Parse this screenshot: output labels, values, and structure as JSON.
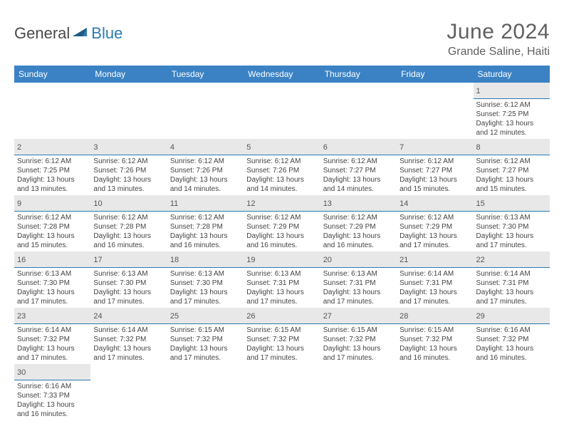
{
  "logo": {
    "part1": "General",
    "part2": "Blue"
  },
  "title": "June 2024",
  "location": "Grande Saline, Haiti",
  "header_bg": "#3b82c4",
  "header_fg": "#ffffff",
  "daynum_bg": "#e8e8e8",
  "divider_color": "#2a7ab0",
  "text_color": "#444444",
  "columns": [
    "Sunday",
    "Monday",
    "Tuesday",
    "Wednesday",
    "Thursday",
    "Friday",
    "Saturday"
  ],
  "weeks": [
    [
      null,
      null,
      null,
      null,
      null,
      null,
      {
        "n": "1",
        "sr": "Sunrise: 6:12 AM",
        "ss": "Sunset: 7:25 PM",
        "d1": "Daylight: 13 hours",
        "d2": "and 12 minutes."
      }
    ],
    [
      {
        "n": "2",
        "sr": "Sunrise: 6:12 AM",
        "ss": "Sunset: 7:25 PM",
        "d1": "Daylight: 13 hours",
        "d2": "and 13 minutes."
      },
      {
        "n": "3",
        "sr": "Sunrise: 6:12 AM",
        "ss": "Sunset: 7:26 PM",
        "d1": "Daylight: 13 hours",
        "d2": "and 13 minutes."
      },
      {
        "n": "4",
        "sr": "Sunrise: 6:12 AM",
        "ss": "Sunset: 7:26 PM",
        "d1": "Daylight: 13 hours",
        "d2": "and 14 minutes."
      },
      {
        "n": "5",
        "sr": "Sunrise: 6:12 AM",
        "ss": "Sunset: 7:26 PM",
        "d1": "Daylight: 13 hours",
        "d2": "and 14 minutes."
      },
      {
        "n": "6",
        "sr": "Sunrise: 6:12 AM",
        "ss": "Sunset: 7:27 PM",
        "d1": "Daylight: 13 hours",
        "d2": "and 14 minutes."
      },
      {
        "n": "7",
        "sr": "Sunrise: 6:12 AM",
        "ss": "Sunset: 7:27 PM",
        "d1": "Daylight: 13 hours",
        "d2": "and 15 minutes."
      },
      {
        "n": "8",
        "sr": "Sunrise: 6:12 AM",
        "ss": "Sunset: 7:27 PM",
        "d1": "Daylight: 13 hours",
        "d2": "and 15 minutes."
      }
    ],
    [
      {
        "n": "9",
        "sr": "Sunrise: 6:12 AM",
        "ss": "Sunset: 7:28 PM",
        "d1": "Daylight: 13 hours",
        "d2": "and 15 minutes."
      },
      {
        "n": "10",
        "sr": "Sunrise: 6:12 AM",
        "ss": "Sunset: 7:28 PM",
        "d1": "Daylight: 13 hours",
        "d2": "and 16 minutes."
      },
      {
        "n": "11",
        "sr": "Sunrise: 6:12 AM",
        "ss": "Sunset: 7:28 PM",
        "d1": "Daylight: 13 hours",
        "d2": "and 16 minutes."
      },
      {
        "n": "12",
        "sr": "Sunrise: 6:12 AM",
        "ss": "Sunset: 7:29 PM",
        "d1": "Daylight: 13 hours",
        "d2": "and 16 minutes."
      },
      {
        "n": "13",
        "sr": "Sunrise: 6:12 AM",
        "ss": "Sunset: 7:29 PM",
        "d1": "Daylight: 13 hours",
        "d2": "and 16 minutes."
      },
      {
        "n": "14",
        "sr": "Sunrise: 6:12 AM",
        "ss": "Sunset: 7:29 PM",
        "d1": "Daylight: 13 hours",
        "d2": "and 17 minutes."
      },
      {
        "n": "15",
        "sr": "Sunrise: 6:13 AM",
        "ss": "Sunset: 7:30 PM",
        "d1": "Daylight: 13 hours",
        "d2": "and 17 minutes."
      }
    ],
    [
      {
        "n": "16",
        "sr": "Sunrise: 6:13 AM",
        "ss": "Sunset: 7:30 PM",
        "d1": "Daylight: 13 hours",
        "d2": "and 17 minutes."
      },
      {
        "n": "17",
        "sr": "Sunrise: 6:13 AM",
        "ss": "Sunset: 7:30 PM",
        "d1": "Daylight: 13 hours",
        "d2": "and 17 minutes."
      },
      {
        "n": "18",
        "sr": "Sunrise: 6:13 AM",
        "ss": "Sunset: 7:30 PM",
        "d1": "Daylight: 13 hours",
        "d2": "and 17 minutes."
      },
      {
        "n": "19",
        "sr": "Sunrise: 6:13 AM",
        "ss": "Sunset: 7:31 PM",
        "d1": "Daylight: 13 hours",
        "d2": "and 17 minutes."
      },
      {
        "n": "20",
        "sr": "Sunrise: 6:13 AM",
        "ss": "Sunset: 7:31 PM",
        "d1": "Daylight: 13 hours",
        "d2": "and 17 minutes."
      },
      {
        "n": "21",
        "sr": "Sunrise: 6:14 AM",
        "ss": "Sunset: 7:31 PM",
        "d1": "Daylight: 13 hours",
        "d2": "and 17 minutes."
      },
      {
        "n": "22",
        "sr": "Sunrise: 6:14 AM",
        "ss": "Sunset: 7:31 PM",
        "d1": "Daylight: 13 hours",
        "d2": "and 17 minutes."
      }
    ],
    [
      {
        "n": "23",
        "sr": "Sunrise: 6:14 AM",
        "ss": "Sunset: 7:32 PM",
        "d1": "Daylight: 13 hours",
        "d2": "and 17 minutes."
      },
      {
        "n": "24",
        "sr": "Sunrise: 6:14 AM",
        "ss": "Sunset: 7:32 PM",
        "d1": "Daylight: 13 hours",
        "d2": "and 17 minutes."
      },
      {
        "n": "25",
        "sr": "Sunrise: 6:15 AM",
        "ss": "Sunset: 7:32 PM",
        "d1": "Daylight: 13 hours",
        "d2": "and 17 minutes."
      },
      {
        "n": "26",
        "sr": "Sunrise: 6:15 AM",
        "ss": "Sunset: 7:32 PM",
        "d1": "Daylight: 13 hours",
        "d2": "and 17 minutes."
      },
      {
        "n": "27",
        "sr": "Sunrise: 6:15 AM",
        "ss": "Sunset: 7:32 PM",
        "d1": "Daylight: 13 hours",
        "d2": "and 17 minutes."
      },
      {
        "n": "28",
        "sr": "Sunrise: 6:15 AM",
        "ss": "Sunset: 7:32 PM",
        "d1": "Daylight: 13 hours",
        "d2": "and 16 minutes."
      },
      {
        "n": "29",
        "sr": "Sunrise: 6:16 AM",
        "ss": "Sunset: 7:32 PM",
        "d1": "Daylight: 13 hours",
        "d2": "and 16 minutes."
      }
    ],
    [
      {
        "n": "30",
        "sr": "Sunrise: 6:16 AM",
        "ss": "Sunset: 7:33 PM",
        "d1": "Daylight: 13 hours",
        "d2": "and 16 minutes."
      },
      null,
      null,
      null,
      null,
      null,
      null
    ]
  ]
}
